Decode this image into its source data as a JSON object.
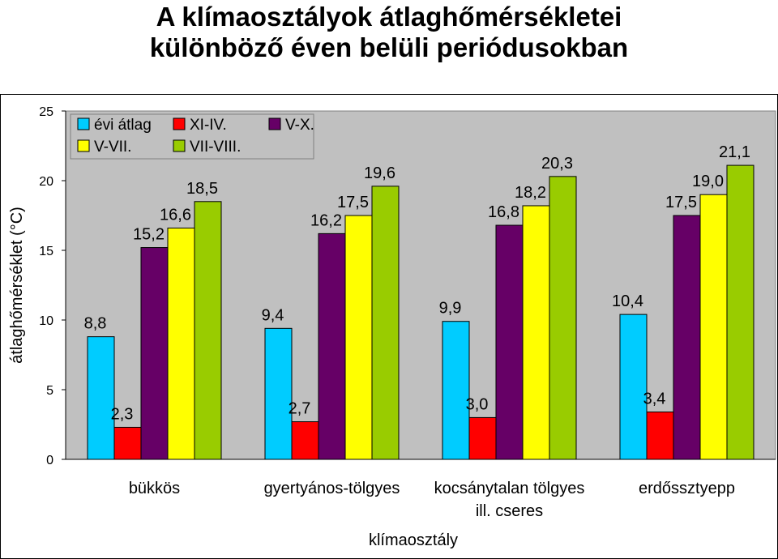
{
  "title": {
    "line1": "A klímaosztályok átlaghőmérsékletei",
    "line2": "különböző éven belüli periódusokban"
  },
  "chart_data": {
    "type": "bar",
    "categories": [
      [
        "bükkös"
      ],
      [
        "gyertyános-tölgyes"
      ],
      [
        "kocsánytalan tölgyes",
        "ill. cseres"
      ],
      [
        "erdőssztyepp"
      ]
    ],
    "series": [
      {
        "name": "évi átlag",
        "color": "#00CCFF",
        "values": [
          8.8,
          9.4,
          9.9,
          10.4
        ],
        "labels": [
          "8,8",
          "9,4",
          "9,9",
          "10,4"
        ]
      },
      {
        "name": "XI-IV.",
        "color": "#FF0000",
        "values": [
          2.3,
          2.7,
          3.0,
          3.4
        ],
        "labels": [
          "2,3",
          "2,7",
          "3,0",
          "3,4"
        ]
      },
      {
        "name": "V-X.",
        "color": "#660066",
        "values": [
          15.2,
          16.2,
          16.8,
          17.5
        ],
        "labels": [
          "15,2",
          "16,2",
          "16,8",
          "17,5"
        ]
      },
      {
        "name": "V-VII.",
        "color": "#FFFF00",
        "values": [
          16.6,
          17.5,
          18.2,
          19.0
        ],
        "labels": [
          "16,6",
          "17,5",
          "18,2",
          "19,0"
        ]
      },
      {
        "name": "VII-VIII.",
        "color": "#99CC00",
        "values": [
          18.5,
          19.6,
          20.3,
          21.1
        ],
        "labels": [
          "18,5",
          "19,6",
          "20,3",
          "21,1"
        ]
      }
    ],
    "xlabel": "klímaosztály",
    "ylabel": "átlaghőmérséklet (°C)",
    "ylim": [
      0,
      25
    ],
    "yticks": [
      "0",
      "5",
      "10",
      "15",
      "20",
      "25"
    ],
    "grid": false,
    "legend": "top-left",
    "plot_background": "#C0C0C0"
  }
}
